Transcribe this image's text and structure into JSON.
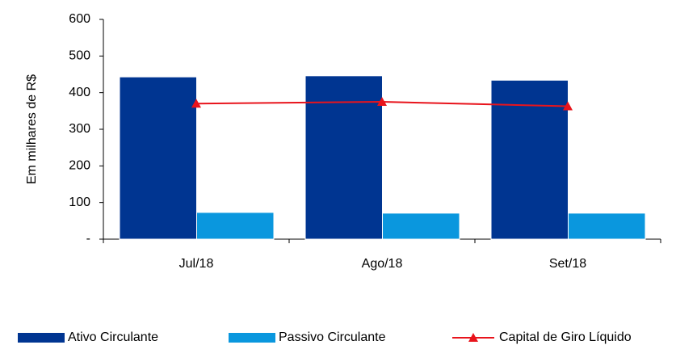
{
  "chart_data": {
    "type": "bar",
    "y_label": "Em milhares de R$",
    "categories": [
      "Jul/18",
      "Ago/18",
      "Set/18"
    ],
    "series": [
      {
        "name": "Ativo Circulante",
        "color": "#003591",
        "values": [
          443,
          446,
          434
        ]
      },
      {
        "name": "Passivo Circulante",
        "color": "#0a97de",
        "values": [
          73,
          71,
          71
        ]
      },
      {
        "name": "Capital de Giro Líquido",
        "color": "#e8141c",
        "type": "line",
        "values": [
          370,
          375,
          363
        ]
      }
    ],
    "ylim": [
      0,
      600
    ],
    "yticks": [
      {
        "value": 0,
        "label": "-"
      },
      100,
      200,
      300,
      400,
      500,
      600
    ],
    "grid": false,
    "legend": "bottom"
  }
}
